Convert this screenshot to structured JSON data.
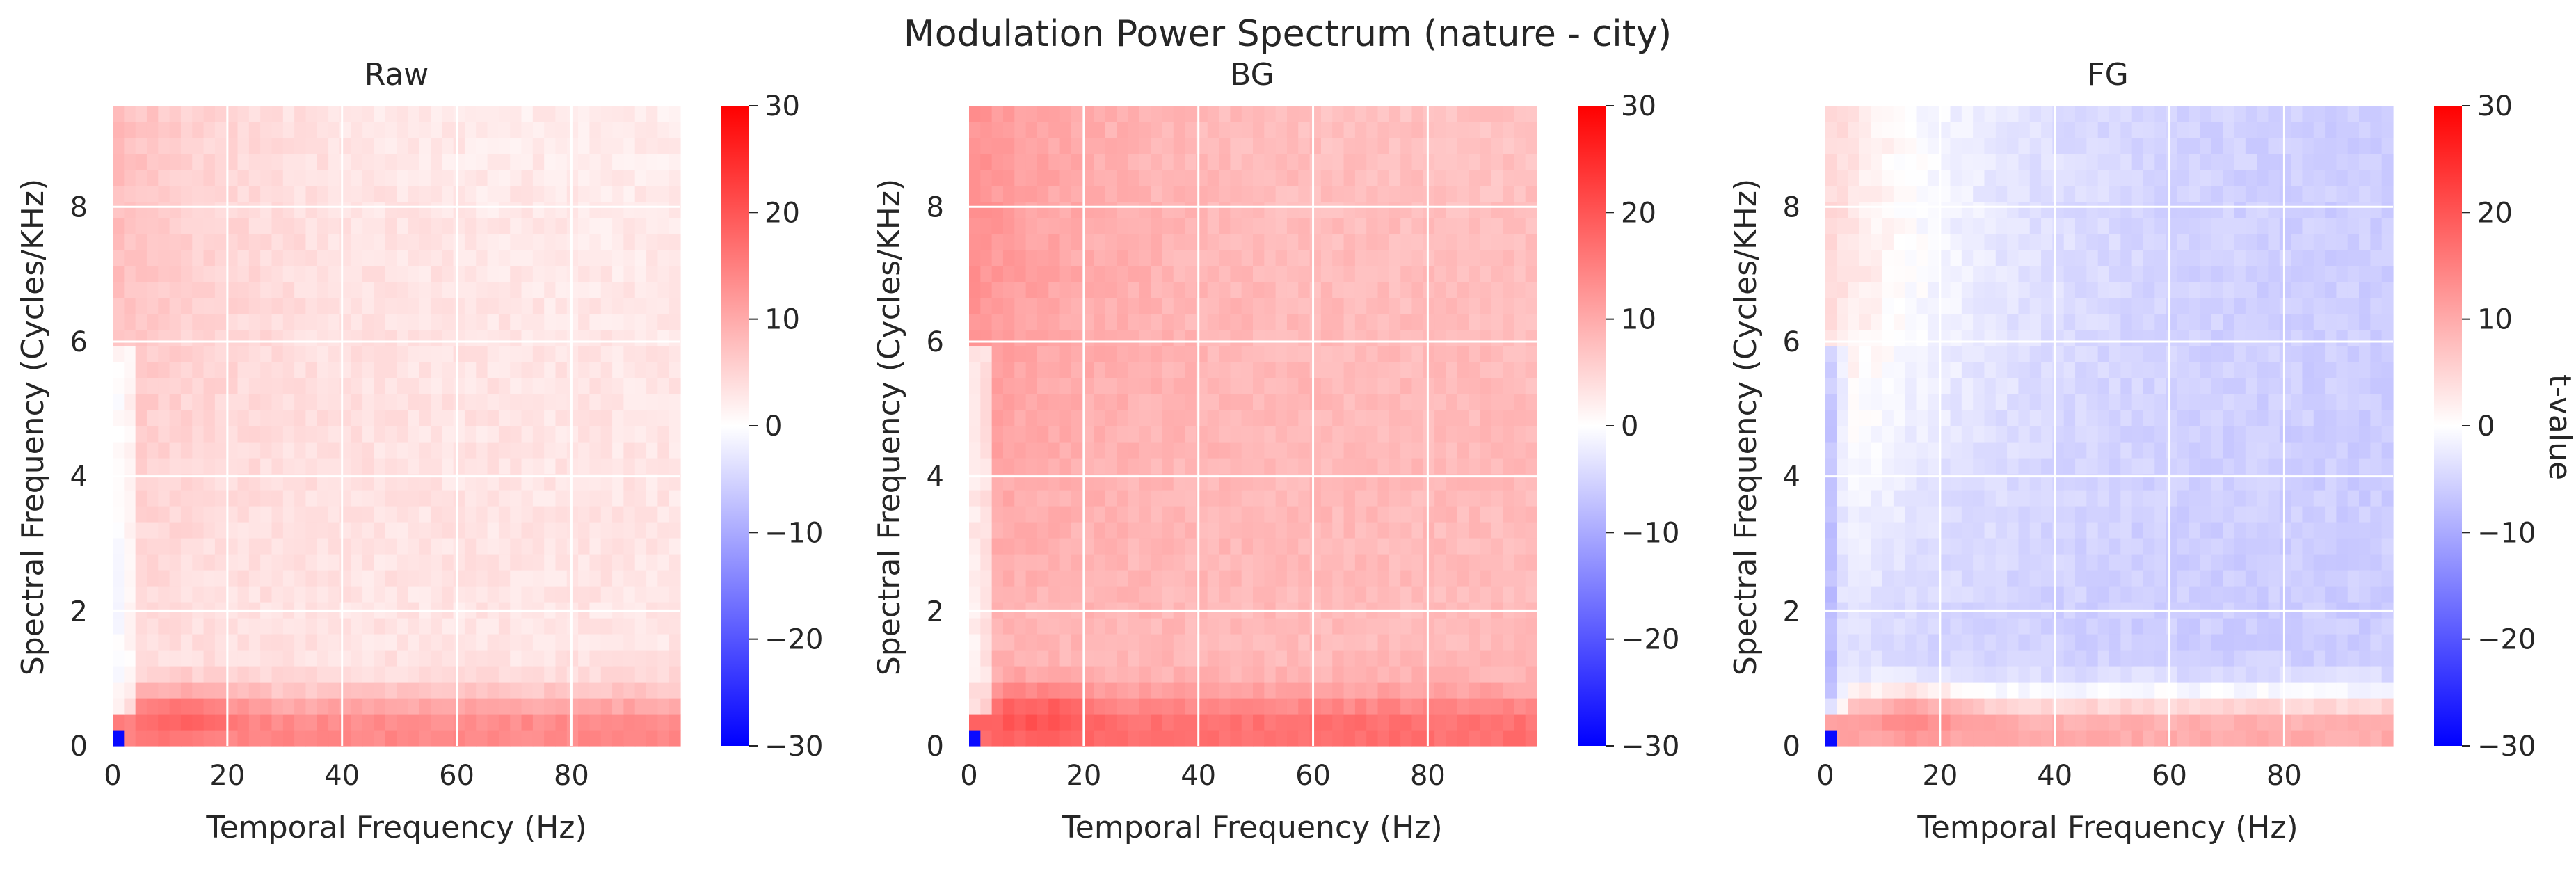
{
  "figure_title": "Modulation Power Spectrum (nature - city)",
  "colors": {
    "negative": "#0000ff",
    "neutral": "#ffffff",
    "positive": "#ff0000",
    "grid": "#ffffff",
    "text": "#262626"
  },
  "chart_data": [
    {
      "type": "heatmap",
      "panel": "raw",
      "title": "Raw",
      "xlabel": "Temporal Frequency (Hz)",
      "ylabel": "Spectral Frequency (Cycles/KHz)",
      "xlim": [
        0,
        99
      ],
      "ylim": [
        0,
        9.5
      ],
      "xticks": [
        0,
        20,
        40,
        60,
        80
      ],
      "xtick_labels": [
        "0",
        "20",
        "40",
        "60",
        "80"
      ],
      "yticks": [
        0,
        2,
        4,
        6,
        8
      ],
      "ytick_labels": [
        "0",
        "2",
        "4",
        "6",
        "8"
      ],
      "grid": true,
      "colorbar": {
        "vmin": -30,
        "vmax": 30,
        "ticks": [
          30,
          20,
          10,
          0,
          -10,
          -20,
          -30
        ],
        "tick_labels": [
          "30",
          "20",
          "10",
          "0",
          "−10",
          "−20",
          "−30"
        ],
        "label": ""
      },
      "grid_resolution": {
        "nx": 50,
        "ny": 40
      },
      "pattern": {
        "near_dc": -28,
        "low_spec_low_temp": 24,
        "low_spec_band": 14,
        "mid_far": 3,
        "upper_low_temp": 8,
        "upper_far": 2,
        "left_edge_mid": -3,
        "hot_temp_hz": 12,
        "hot_spec": 0.9
      }
    },
    {
      "type": "heatmap",
      "panel": "bg",
      "title": "BG",
      "xlabel": "Temporal Frequency (Hz)",
      "ylabel": "Spectral Frequency (Cycles/KHz)",
      "xlim": [
        0,
        99
      ],
      "ylim": [
        0,
        9.5
      ],
      "xticks": [
        0,
        20,
        40,
        60,
        80
      ],
      "xtick_labels": [
        "0",
        "20",
        "40",
        "60",
        "80"
      ],
      "yticks": [
        0,
        2,
        4,
        6,
        8
      ],
      "ytick_labels": [
        "0",
        "2",
        "4",
        "6",
        "8"
      ],
      "grid": true,
      "colorbar": {
        "vmin": -30,
        "vmax": 30,
        "ticks": [
          30,
          20,
          10,
          0,
          -10,
          -20,
          -30
        ],
        "tick_labels": [
          "30",
          "20",
          "10",
          "0",
          "−10",
          "−20",
          "−30"
        ],
        "label": ""
      },
      "grid_resolution": {
        "nx": 50,
        "ny": 40
      },
      "pattern": {
        "near_dc": -28,
        "low_spec_low_temp": 26,
        "low_spec_band": 17,
        "mid_far": 8,
        "upper_low_temp": 13,
        "upper_far": 7,
        "left_edge_mid": -2,
        "hot_temp_hz": 12,
        "hot_spec": 0.9
      }
    },
    {
      "type": "heatmap",
      "panel": "fg",
      "title": "FG",
      "xlabel": "Temporal Frequency (Hz)",
      "ylabel": "Spectral Frequency (Cycles/KHz)",
      "xlim": [
        0,
        99
      ],
      "ylim": [
        0,
        9.5
      ],
      "xticks": [
        0,
        20,
        40,
        60,
        80
      ],
      "xtick_labels": [
        "0",
        "20",
        "40",
        "60",
        "80"
      ],
      "yticks": [
        0,
        2,
        4,
        6,
        8
      ],
      "ytick_labels": [
        "0",
        "2",
        "4",
        "6",
        "8"
      ],
      "grid": true,
      "colorbar": {
        "vmin": -30,
        "vmax": 30,
        "ticks": [
          30,
          20,
          10,
          0,
          -10,
          -20,
          -30
        ],
        "tick_labels": [
          "30",
          "20",
          "10",
          "0",
          "−10",
          "−20",
          "−30"
        ],
        "label": "t-value"
      },
      "grid_resolution": {
        "nx": 50,
        "ny": 40
      },
      "pattern": {
        "near_dc": -28,
        "low_spec_low_temp": 20,
        "low_spec_band": 10,
        "mid_far": -6,
        "upper_low_temp": 5,
        "upper_far": -6,
        "left_edge_mid": -9,
        "hot_temp_hz": 15,
        "hot_spec": 0.9
      }
    }
  ]
}
